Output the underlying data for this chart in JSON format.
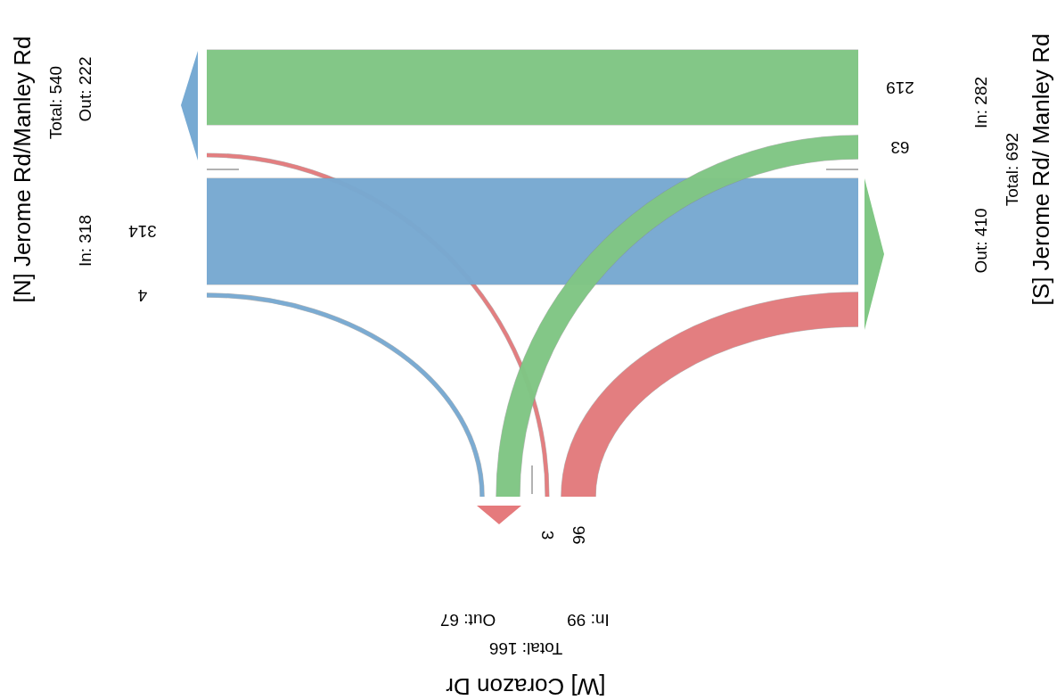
{
  "chart_data": {
    "type": "other",
    "categories": [
      "[N] Jerome Rd/Manley Rd",
      "[S] Jerome Rd/ Manley Rd",
      "[W] Corazon Dr"
    ],
    "series": [
      {
        "colors": [
          null,
          "#80c784",
          "#e57a7c"
        ],
        "values": [
          null,
          219,
          3
        ]
      },
      {
        "colors": [
          "#77aad3",
          null,
          "#e57a7c"
        ],
        "values": [
          314,
          null,
          96
        ]
      },
      {
        "colors": [
          "#77aad3",
          "#80c784",
          null
        ],
        "values": [
          4,
          63,
          null
        ]
      }
    ],
    "annotations": [
      "In: 318",
      "Out: 222",
      "Total: 540",
      "In: 282",
      "Out: 410",
      "Total: 692",
      "In: 99",
      "Out: 67",
      "Total: 166"
    ],
    "data_labels": true
  }
}
